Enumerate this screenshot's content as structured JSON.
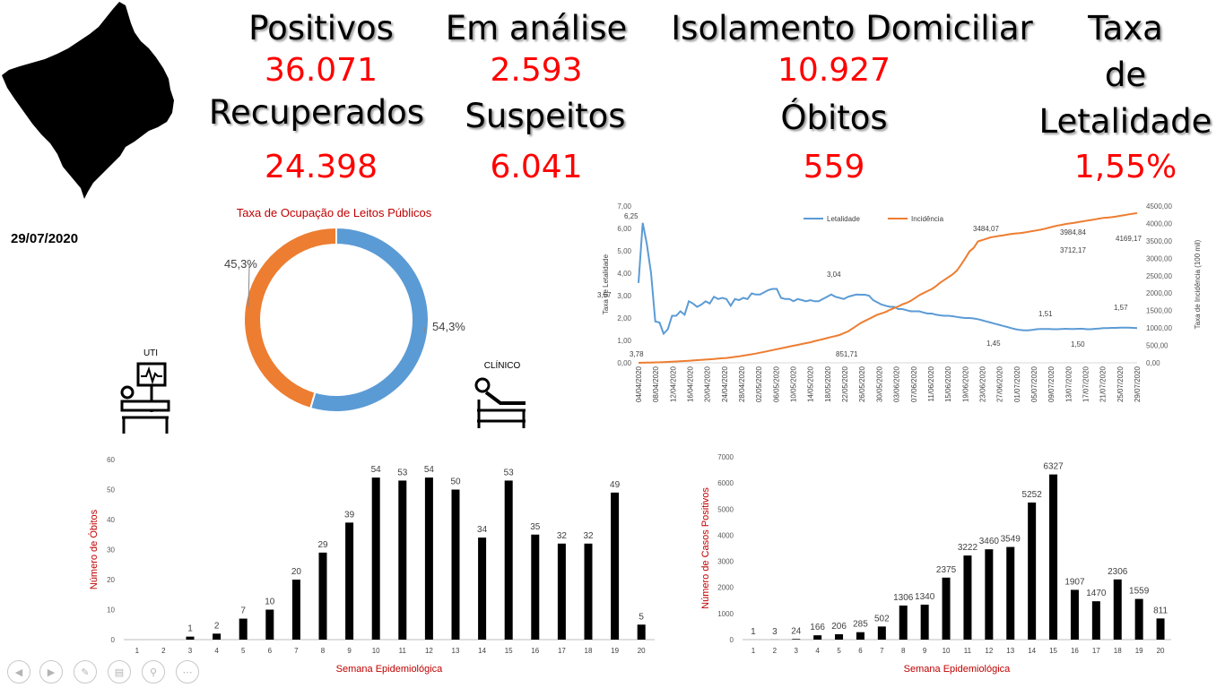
{
  "header": {
    "stats": [
      {
        "label": "Positivos",
        "value": "36.071"
      },
      {
        "label": "Em análise",
        "value": "2.593"
      },
      {
        "label": "Isolamento Domiciliar",
        "value": "10.927"
      },
      {
        "label": "Recuperados",
        "value": "24.398"
      },
      {
        "label": "Suspeitos",
        "value": "6.041"
      },
      {
        "label": "Óbitos",
        "value": "559"
      }
    ],
    "letalidade": {
      "line1": "Taxa",
      "line2": "de",
      "line3": "Letalidade",
      "value": "1,55%"
    }
  },
  "date": "29/07/2020",
  "icons": {
    "uti_label": "UTI",
    "clinico_label": "CLÍNICO"
  },
  "colors": {
    "accent_red": "#ff0000",
    "title_red": "#c00000",
    "blue": "#5b9bd5",
    "orange": "#ed7d31",
    "bar": "#000000"
  },
  "nav": {
    "icons": [
      "prev-icon",
      "next-icon",
      "pen-icon",
      "slides-icon",
      "zoom-icon",
      "more-icon"
    ]
  },
  "chart_data": [
    {
      "type": "pie",
      "title": "Taxa de Ocupação de Leitos Públicos",
      "slices": [
        {
          "value": 54.3,
          "label": "54,3%",
          "color": "#5b9bd5"
        },
        {
          "value": 45.3,
          "label": "45,3%",
          "color": "#ed7d31"
        }
      ]
    },
    {
      "type": "line",
      "ylabel": "Taxa de Letalidade",
      "y2label": "Taxa de Incidência  (100 mil)",
      "ylim": [
        0,
        7
      ],
      "y2lim": [
        0,
        4500
      ],
      "yticks": [
        "0,00",
        "1,00",
        "2,00",
        "3,00",
        "4,00",
        "5,00",
        "6,00",
        "7,00"
      ],
      "y2ticks": [
        "0,00",
        "500,00",
        "1000,00",
        "1500,00",
        "2000,00",
        "2500,00",
        "3000,00",
        "3500,00",
        "4000,00",
        "4500,00"
      ],
      "xticks": [
        "04/04/2020",
        "08/04/2020",
        "12/04/2020",
        "16/04/2020",
        "20/04/2020",
        "24/04/2020",
        "28/04/2020",
        "02/05/2020",
        "06/05/2020",
        "10/05/2020",
        "14/05/2020",
        "18/05/2020",
        "22/05/2020",
        "26/05/2020",
        "30/05/2020",
        "03/06/2020",
        "07/06/2020",
        "11/06/2020",
        "15/06/2020",
        "19/06/2020",
        "23/06/2020",
        "27/06/2020",
        "01/07/2020",
        "05/07/2020",
        "09/07/2020",
        "13/07/2020",
        "17/07/2020",
        "21/07/2020",
        "25/07/2020",
        "29/07/2020"
      ],
      "series": [
        {
          "name": "Letalidade",
          "color": "#5b9bd5",
          "axis": "left",
          "values": [
            3.57,
            6.25,
            5.3,
            4.0,
            1.85,
            1.8,
            1.3,
            1.5,
            2.1,
            2.1,
            2.3,
            2.15,
            2.75,
            2.65,
            2.5,
            2.6,
            2.75,
            2.65,
            2.95,
            2.85,
            2.9,
            2.85,
            2.55,
            2.85,
            2.8,
            2.9,
            2.85,
            3.1,
            3.05,
            3.05,
            3.15,
            3.25,
            3.3,
            3.3,
            2.9,
            2.85,
            2.85,
            2.75,
            2.85,
            2.8,
            2.75,
            2.8,
            2.75,
            2.75,
            2.85,
            2.95,
            3.05,
            2.95,
            2.9,
            2.85,
            2.95,
            3.0,
            3.05,
            3.04,
            3.04,
            3.0,
            2.8,
            2.7,
            2.6,
            2.55,
            2.5,
            2.5,
            2.4,
            2.4,
            2.35,
            2.3,
            2.3,
            2.3,
            2.25,
            2.2,
            2.2,
            2.15,
            2.12,
            2.1,
            2.1,
            2.08,
            2.05,
            2.02,
            2.0,
            2.0,
            1.98,
            1.95,
            1.9,
            1.85,
            1.8,
            1.75,
            1.7,
            1.65,
            1.6,
            1.55,
            1.5,
            1.47,
            1.45,
            1.45,
            1.47,
            1.5,
            1.51,
            1.51,
            1.51,
            1.5,
            1.5,
            1.51,
            1.52,
            1.51,
            1.51,
            1.52,
            1.52,
            1.5,
            1.5,
            1.52,
            1.53,
            1.55,
            1.55,
            1.56,
            1.56,
            1.57,
            1.57,
            1.57,
            1.56,
            1.55
          ]
        },
        {
          "name": "Incidência",
          "color": "#ed7d31",
          "axis": "right",
          "values": [
            0,
            3,
            6,
            9,
            12,
            15,
            20,
            26,
            32,
            38,
            44,
            52,
            60,
            68,
            76,
            84,
            92,
            100,
            110,
            120,
            130,
            140,
            155,
            170,
            185,
            205,
            225,
            245,
            265,
            290,
            315,
            340,
            365,
            390,
            415,
            440,
            465,
            490,
            515,
            540,
            565,
            590,
            620,
            650,
            680,
            710,
            740,
            770,
            800,
            851.71,
            900,
            980,
            1060,
            1140,
            1200,
            1260,
            1320,
            1380,
            1420,
            1460,
            1520,
            1570,
            1620,
            1680,
            1720,
            1780,
            1860,
            1940,
            2000,
            2060,
            2120,
            2200,
            2300,
            2380,
            2460,
            2540,
            2650,
            2820,
            3000,
            3200,
            3300,
            3484.07,
            3520,
            3560,
            3600,
            3620,
            3640,
            3660,
            3680,
            3700,
            3712.17,
            3720,
            3740,
            3760,
            3780,
            3800,
            3820,
            3850,
            3880,
            3910,
            3940,
            3960,
            3984.84,
            4000,
            4020,
            4040,
            4060,
            4080,
            4100,
            4120,
            4140,
            4160,
            4169.17,
            4180,
            4200,
            4220,
            4240,
            4260,
            4280,
            4300
          ]
        }
      ],
      "annotations": [
        "3,57",
        "6,25",
        "3,04",
        "1,51",
        "1,45",
        "1,50",
        "1,57",
        "3,78",
        "851,71",
        "3484,07",
        "3712,17",
        "3984,84",
        "4169,17"
      ]
    },
    {
      "type": "bar",
      "xlabel": "Semana Epidemiológica",
      "ylabel": "Número de Óbitos",
      "ylim": [
        0,
        60
      ],
      "yticks": [
        0,
        10,
        20,
        30,
        40,
        50,
        60
      ],
      "categories": [
        "1",
        "2",
        "3",
        "4",
        "5",
        "6",
        "7",
        "8",
        "9",
        "10",
        "11",
        "12",
        "13",
        "14",
        "15",
        "16",
        "17",
        "18",
        "19",
        "20"
      ],
      "values": [
        0,
        0,
        1,
        2,
        7,
        10,
        20,
        29,
        39,
        54,
        53,
        54,
        50,
        34,
        53,
        35,
        32,
        32,
        49,
        5
      ],
      "data_labels": [
        "",
        "",
        "1",
        "2",
        "7",
        "10",
        "20",
        "29",
        "39",
        "54",
        "53",
        "54",
        "50",
        "34",
        "53",
        "35",
        "32",
        "32",
        "49",
        "5"
      ]
    },
    {
      "type": "bar",
      "xlabel": "Semana Epidemiológica",
      "ylabel": "Número de Casos Positivos",
      "ylim": [
        0,
        7000
      ],
      "yticks": [
        0,
        1000,
        2000,
        3000,
        4000,
        5000,
        6000,
        7000
      ],
      "categories": [
        "1",
        "2",
        "3",
        "4",
        "5",
        "6",
        "7",
        "8",
        "9",
        "10",
        "11",
        "12",
        "13",
        "14",
        "15",
        "16",
        "17",
        "18",
        "19",
        "20"
      ],
      "values": [
        1,
        3,
        24,
        166,
        206,
        285,
        502,
        1306,
        1340,
        2375,
        3222,
        3460,
        3549,
        5252,
        6327,
        1907,
        1470,
        2306,
        1559,
        811
      ],
      "data_labels": [
        "1",
        "3",
        "24",
        "166",
        "206",
        "285",
        "502",
        "1306",
        "1340",
        "2375",
        "3222",
        "3460",
        "3549",
        "5252",
        "6327",
        "1907",
        "1470",
        "2306",
        "1559",
        "811"
      ]
    }
  ]
}
